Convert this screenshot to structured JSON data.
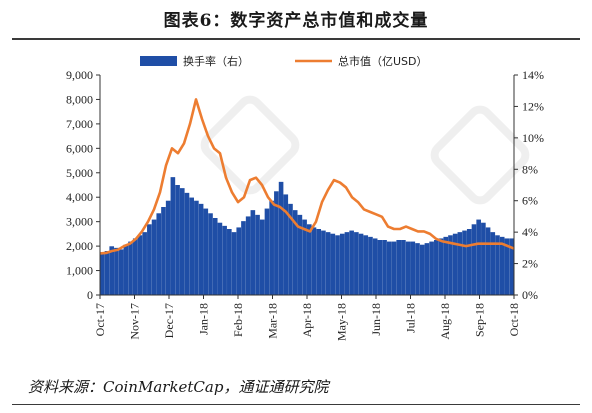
{
  "title": "图表6：数字资产总市值和成交量",
  "source": "资料来源：CoinMarketCap，通证通研究院",
  "chart_data": {
    "type": "bar",
    "legend": {
      "position": "top"
    },
    "x": {
      "tick_labels": [
        "Oct-17",
        "Nov-17",
        "Dec-17",
        "Jan-18",
        "Feb-18",
        "Mar-18",
        "Apr-18",
        "May-18",
        "Jun-18",
        "Jul-18",
        "Aug-18",
        "Sep-18",
        "Oct-18"
      ]
    },
    "y_left": {
      "ylim": [
        0,
        9000
      ],
      "tick_labels": [
        "0",
        "1,000",
        "2,000",
        "3,000",
        "4,000",
        "5,000",
        "6,000",
        "7,000",
        "8,000",
        "9,000"
      ]
    },
    "y_right": {
      "ylim": [
        0,
        14
      ],
      "unit": "%",
      "tick_labels": [
        "0%",
        "2%",
        "4%",
        "6%",
        "8%",
        "10%",
        "12%",
        "14%"
      ]
    },
    "series": [
      {
        "name": "换手率（右）",
        "type": "bar",
        "axis": "right",
        "color": "#1f4ea6",
        "values": [
          2.7,
          2.8,
          3.1,
          3.0,
          2.9,
          3.2,
          3.4,
          3.6,
          3.8,
          4.0,
          4.5,
          4.8,
          5.2,
          5.6,
          6.0,
          7.5,
          7.0,
          6.8,
          6.5,
          6.2,
          6.0,
          5.8,
          5.5,
          5.2,
          4.9,
          4.6,
          4.4,
          4.2,
          4.0,
          4.3,
          4.7,
          5.0,
          5.4,
          5.1,
          4.8,
          5.5,
          6.0,
          6.6,
          7.2,
          6.4,
          5.8,
          5.4,
          5.1,
          4.8,
          4.5,
          4.3,
          4.2,
          4.1,
          4.0,
          3.9,
          3.8,
          3.9,
          4.0,
          4.1,
          4.0,
          3.9,
          3.8,
          3.7,
          3.6,
          3.5,
          3.5,
          3.4,
          3.4,
          3.5,
          3.5,
          3.4,
          3.4,
          3.3,
          3.2,
          3.3,
          3.4,
          3.5,
          3.6,
          3.7,
          3.8,
          3.9,
          4.0,
          4.1,
          4.2,
          4.5,
          4.8,
          4.6,
          4.3,
          4.0,
          3.8,
          3.7,
          3.6,
          3.6
        ]
      },
      {
        "name": "总市值（亿USD）",
        "type": "line",
        "axis": "left",
        "color": "#ed7d31",
        "values": [
          1700,
          1720,
          1800,
          1850,
          2000,
          2100,
          2300,
          2600,
          3000,
          3500,
          4200,
          5300,
          6000,
          5800,
          6200,
          7000,
          8000,
          7200,
          6500,
          6000,
          5800,
          4800,
          4200,
          3800,
          4000,
          4700,
          4800,
          4500,
          4000,
          3700,
          3600,
          3400,
          3100,
          2800,
          2700,
          2600,
          3000,
          3800,
          4300,
          4700,
          4600,
          4400,
          4000,
          3800,
          3500,
          3400,
          3300,
          3200,
          2800,
          2700,
          2700,
          2800,
          2700,
          2600,
          2600,
          2500,
          2300,
          2200,
          2150,
          2100,
          2050,
          2000,
          2050,
          2100,
          2100,
          2100,
          2100,
          2100,
          2000,
          1900
        ]
      }
    ]
  }
}
